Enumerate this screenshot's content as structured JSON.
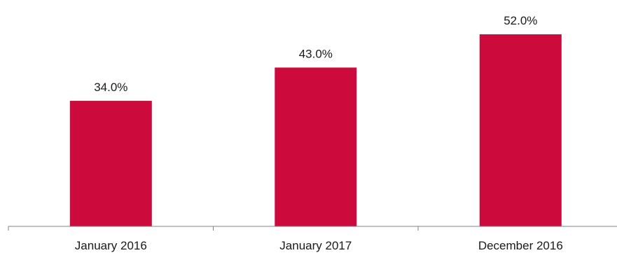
{
  "chart_data": {
    "type": "bar",
    "categories": [
      "January 2016",
      "January 2017",
      "December 2016"
    ],
    "values": [
      34.0,
      43.0,
      52.0
    ],
    "value_labels": [
      "34.0%",
      "43.0%",
      "52.0%"
    ],
    "ylim": [
      0,
      60
    ],
    "grid": false,
    "legend": "none",
    "bar_color": "#cc0a3c",
    "axis_color": "#808080"
  }
}
